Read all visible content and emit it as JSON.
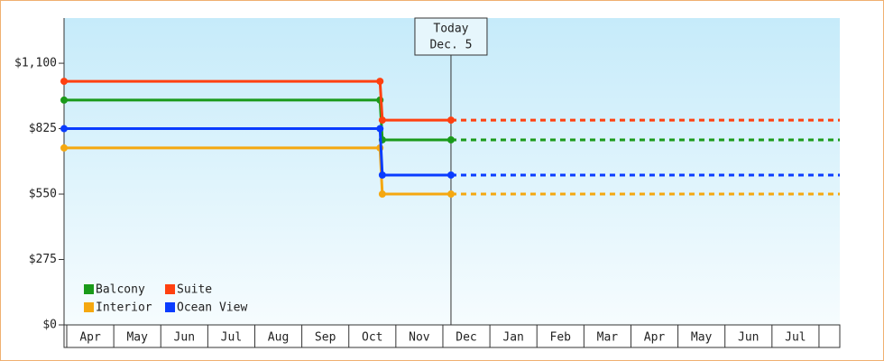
{
  "chart_data": {
    "type": "step-line",
    "xlim": [
      0,
      16.5
    ],
    "xticks": [
      {
        "value": 0.5,
        "label": "Apr"
      },
      {
        "value": 1.5,
        "label": "May"
      },
      {
        "value": 2.5,
        "label": "Jun"
      },
      {
        "value": 3.5,
        "label": "Jul"
      },
      {
        "value": 4.5,
        "label": "Aug"
      },
      {
        "value": 5.5,
        "label": "Sep"
      },
      {
        "value": 6.5,
        "label": "Oct"
      },
      {
        "value": 7.5,
        "label": "Nov"
      },
      {
        "value": 8.5,
        "label": "Dec"
      },
      {
        "value": 9.5,
        "label": "Jan"
      },
      {
        "value": 10.5,
        "label": "Feb"
      },
      {
        "value": 11.5,
        "label": "Mar"
      },
      {
        "value": 12.5,
        "label": "Apr"
      },
      {
        "value": 13.5,
        "label": "May"
      },
      {
        "value": 14.5,
        "label": "Jun"
      },
      {
        "value": 15.5,
        "label": "Jul"
      }
    ],
    "ylim": [
      0,
      1290
    ],
    "yticks": [
      {
        "value": 0,
        "label": "$0"
      },
      {
        "value": 275,
        "label": "$275"
      },
      {
        "value": 550,
        "label": "$550"
      },
      {
        "value": 825,
        "label": "$825"
      },
      {
        "value": 1100,
        "label": "$1,100"
      }
    ],
    "x": [
      0,
      6.72,
      6.77,
      8.23
    ],
    "series": [
      {
        "name": "Balcony",
        "color": "#1a9a1a",
        "values": [
          945,
          945,
          778,
          778
        ]
      },
      {
        "name": "Suite",
        "color": "#ff4010",
        "values": [
          1024,
          1024,
          861,
          861
        ]
      },
      {
        "name": "Interior",
        "color": "#f5a810",
        "values": [
          744,
          744,
          550,
          550
        ]
      },
      {
        "name": "Ocean View",
        "color": "#0a3cff",
        "values": [
          825,
          825,
          630,
          630
        ]
      }
    ],
    "annotation": {
      "x": 8.23,
      "lines": [
        "Today",
        "Dec. 5"
      ]
    },
    "legend": "bottom-left"
  }
}
